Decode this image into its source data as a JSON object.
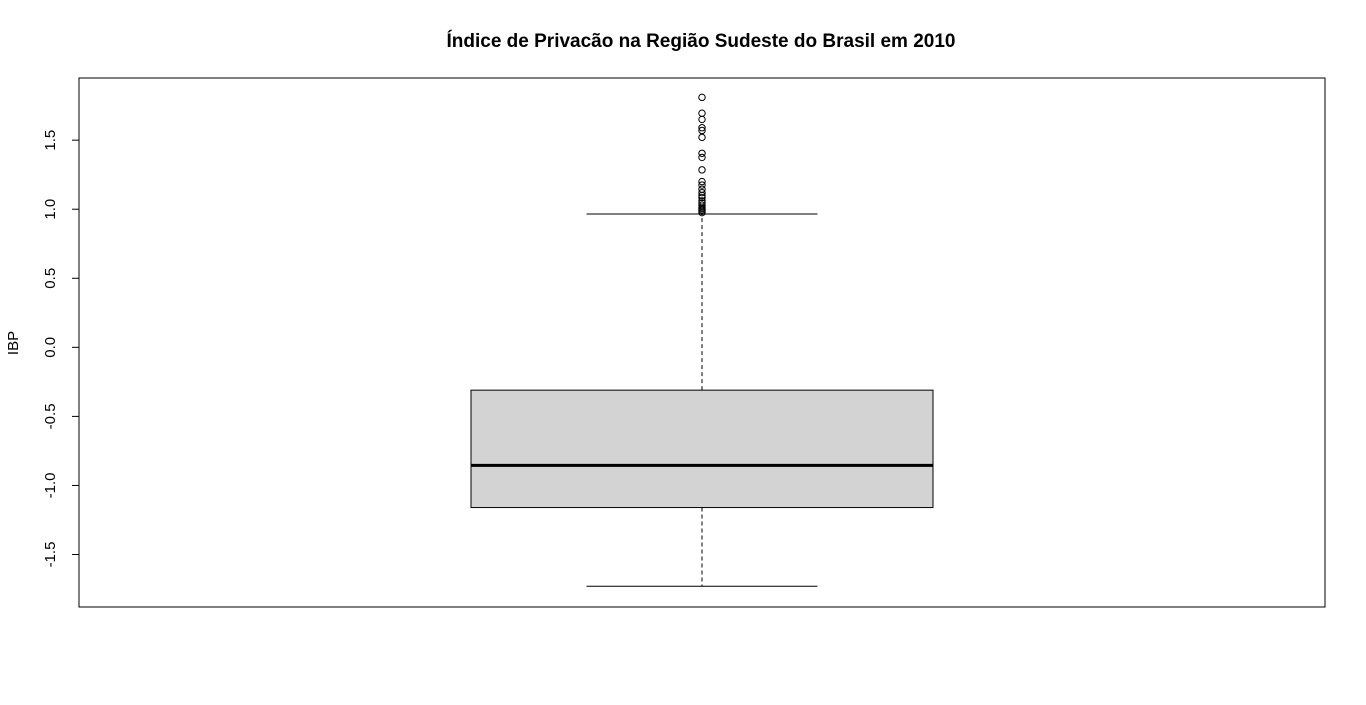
{
  "chart_data": {
    "type": "boxplot",
    "title": "Índice de Privacão na Região Sudeste do Brasil em 2010",
    "xlabel": "",
    "ylabel": "IBP",
    "ylim": [
      -1.88,
      1.95
    ],
    "y_ticks": [
      -1.5,
      -1.0,
      -0.5,
      0.0,
      0.5,
      1.0,
      1.5
    ],
    "y_tick_labels": [
      "-1.5",
      "-1.0",
      "-0.5",
      "0.0",
      "0.5",
      "1.0",
      "1.5"
    ],
    "grid": false,
    "box": {
      "lower_whisker": -1.73,
      "q1": -1.16,
      "median": -0.855,
      "q3": -0.31,
      "upper_whisker": 0.965
    },
    "outliers": [
      0.975,
      0.985,
      0.995,
      1.005,
      1.015,
      1.03,
      1.045,
      1.06,
      1.085,
      1.1,
      1.12,
      1.145,
      1.175,
      1.2,
      1.285,
      1.375,
      1.405,
      1.52,
      1.57,
      1.59,
      1.65,
      1.695,
      1.81
    ],
    "colors": {
      "box_fill": "#d3d3d3",
      "stroke": "#000000"
    }
  }
}
